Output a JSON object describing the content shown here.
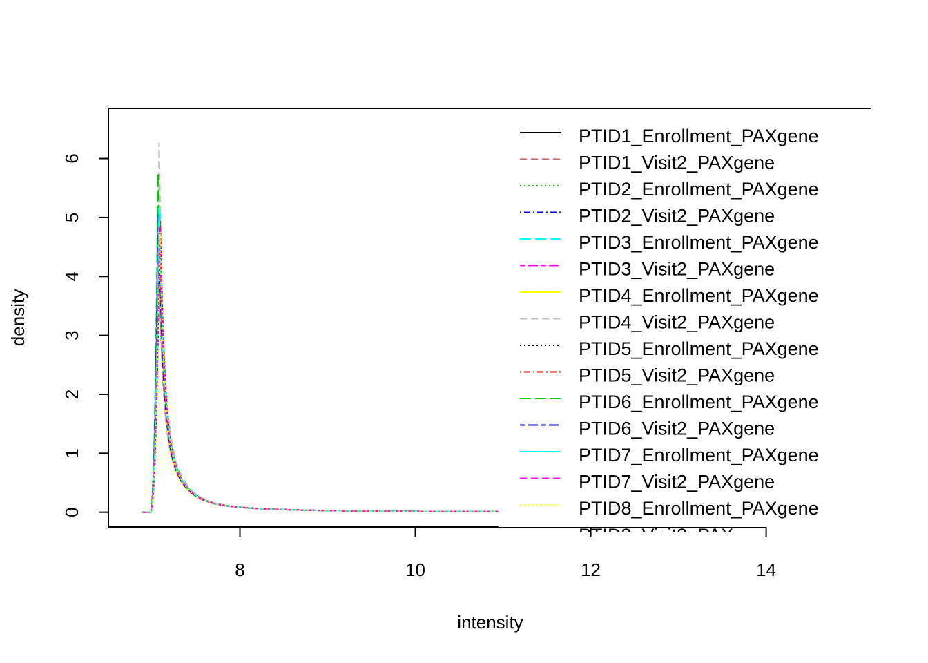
{
  "chart_data": {
    "type": "line",
    "title": "",
    "xlabel": "intensity",
    "ylabel": "density",
    "xlim": [
      6.5,
      15.2
    ],
    "ylim": [
      -0.25,
      6.85
    ],
    "x_ticks": [
      8,
      10,
      12,
      14
    ],
    "y_ticks": [
      0,
      1,
      2,
      3,
      4,
      5,
      6
    ],
    "grid": false,
    "legend_position": "top-right",
    "legend_visible_overflow_label": "PTID8_Visit2_PAX",
    "series": [
      {
        "name": "PTID1_Enrollment_PAXgene",
        "color": "#000000",
        "dash": "solid",
        "peak": 5.25
      },
      {
        "name": "PTID1_Visit2_PAXgene",
        "color": "#DF536B",
        "dash": "dashed",
        "peak": 5.2
      },
      {
        "name": "PTID2_Enrollment_PAXgene",
        "color": "#00CD00",
        "dash": "dotted",
        "peak": 5.45
      },
      {
        "name": "PTID2_Visit2_PAXgene",
        "color": "#0000FF",
        "dash": "dotdash",
        "peak": 5.3
      },
      {
        "name": "PTID3_Enrollment_PAXgene",
        "color": "#00FFFF",
        "dash": "longdash",
        "peak": 5.4
      },
      {
        "name": "PTID3_Visit2_PAXgene",
        "color": "#FF00FF",
        "dash": "twodash",
        "peak": 5.25
      },
      {
        "name": "PTID4_Enrollment_PAXgene",
        "color": "#FFFF00",
        "dash": "solid",
        "peak": 5.0
      },
      {
        "name": "PTID4_Visit2_PAXgene",
        "color": "#BEBEBE",
        "dash": "dashed",
        "peak": 6.55
      },
      {
        "name": "PTID5_Enrollment_PAXgene",
        "color": "#000000",
        "dash": "dotted",
        "peak": 5.2
      },
      {
        "name": "PTID5_Visit2_PAXgene",
        "color": "#FF0000",
        "dash": "dotdash",
        "peak": 5.15
      },
      {
        "name": "PTID6_Enrollment_PAXgene",
        "color": "#00CD00",
        "dash": "longdash",
        "peak": 6.05
      },
      {
        "name": "PTID6_Visit2_PAXgene",
        "color": "#0000CD",
        "dash": "twodash",
        "peak": 5.3
      },
      {
        "name": "PTID7_Enrollment_PAXgene",
        "color": "#00FFFF",
        "dash": "solid",
        "peak": 5.4
      },
      {
        "name": "PTID7_Visit2_PAXgene",
        "color": "#FF00FF",
        "dash": "dashed",
        "peak": 5.05
      },
      {
        "name": "PTID8_Enrollment_PAXgene",
        "color": "#FFFF00",
        "dash": "dotted",
        "peak": 4.95
      }
    ]
  }
}
